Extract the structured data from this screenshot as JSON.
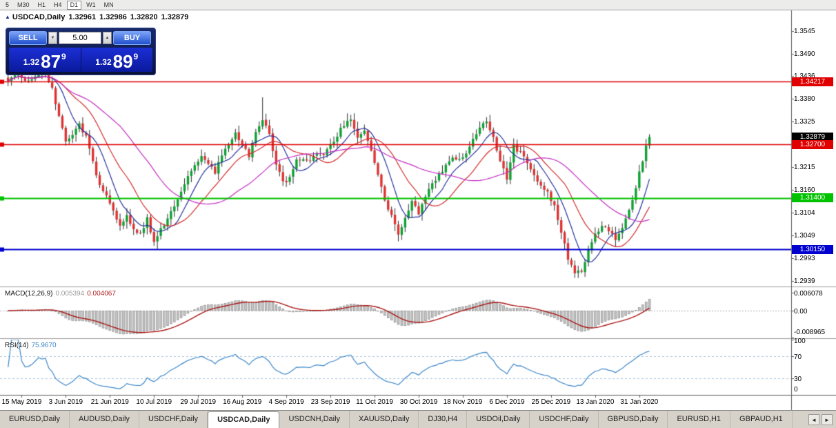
{
  "toolbar": {
    "timeframes": [
      "5",
      "M30",
      "H1",
      "H4",
      "D1",
      "W1",
      "MN"
    ],
    "active": "D1"
  },
  "chart_header": {
    "icon": "▲",
    "symbol": "USDCAD,Daily",
    "open": "1.32961",
    "high": "1.32986",
    "low": "1.32820",
    "close": "1.32879"
  },
  "trade_panel": {
    "sell_label": "SELL",
    "buy_label": "BUY",
    "lot_value": "5.00",
    "spin_up": "▲",
    "spin_down": "▼",
    "sell_price": {
      "prefix": "1.32",
      "big": "87",
      "sup": "9"
    },
    "buy_price": {
      "prefix": "1.32",
      "big": "89",
      "sup": "9"
    }
  },
  "price_axis": {
    "ticks": [
      {
        "text": "1.3545",
        "p": 1.3545
      },
      {
        "text": "1.3490",
        "p": 1.349
      },
      {
        "text": "1.3436",
        "p": 1.3436
      },
      {
        "text": "1.3380",
        "p": 1.338
      },
      {
        "text": "1.3325",
        "p": 1.3325
      },
      {
        "text": "1.3270",
        "p": 1.327
      },
      {
        "text": "1.3215",
        "p": 1.3215
      },
      {
        "text": "1.3160",
        "p": 1.316
      },
      {
        "text": "1.3104",
        "p": 1.3104
      },
      {
        "text": "1.3049",
        "p": 1.3049
      },
      {
        "text": "1.2993",
        "p": 1.2993
      },
      {
        "text": "1.2939",
        "p": 1.2939
      }
    ]
  },
  "hlines": [
    {
      "label": "1.34217",
      "price": 1.34217,
      "color": "#e00000",
      "line": true,
      "lw": 1.4
    },
    {
      "label": "1.32879",
      "price": 1.32879,
      "color": "#000000",
      "line": false,
      "lw": 0
    },
    {
      "label": "1.32700",
      "price": 1.327,
      "color": "#e00000",
      "line": true,
      "lw": 1.4
    },
    {
      "label": "1.31400",
      "price": 1.314,
      "color": "#00c300",
      "line": true,
      "lw": 1.8
    },
    {
      "label": "1.30150",
      "price": 1.3015,
      "color": "#0000cf",
      "line": true,
      "lw": 1.8
    }
  ],
  "macd_panel": {
    "name": "MACD(12,26,9)",
    "main_value": "0.005394",
    "signal_value": "0.004067",
    "fast": 12,
    "slow": 26,
    "signal": 9,
    "axis": [
      {
        "text": "0.006078",
        "v": 0.006078
      },
      {
        "text": "0.00",
        "v": 0
      },
      {
        "text": "-0.008965",
        "v": -0.008965
      }
    ],
    "ylim": [
      -0.0092,
      0.0076
    ],
    "bar_color": "#c4c4c4",
    "bar_edge": "#8e8e8e",
    "signal_color": "#aa1515"
  },
  "rsi_panel": {
    "name": "RSI(14)",
    "value": "75.9670",
    "period": 14,
    "axis": [
      {
        "text": "100",
        "v": 100
      },
      {
        "text": "70",
        "v": 70
      },
      {
        "text": "30",
        "v": 30
      },
      {
        "text": "0",
        "v": 0
      }
    ],
    "levels": [
      70,
      30
    ],
    "line_color": "#3a86c8",
    "level_color": "#a9c4de"
  },
  "date_axis": {
    "first_index": 4,
    "step": 13,
    "labels": [
      "15 May 2019",
      "3 Jun 2019",
      "21 Jun 2019",
      "10 Jul 2019",
      "29 Jul 2019",
      "16 Aug 2019",
      "4 Sep 2019",
      "23 Sep 2019",
      "11 Oct 2019",
      "30 Oct 2019",
      "18 Nov 2019",
      "6 Dec 2019",
      "25 Dec 2019",
      "13 Jan 2020",
      "31 Jan 2020"
    ]
  },
  "tabs": {
    "items": [
      "EURUSD,Daily",
      "AUDUSD,Daily",
      "USDCHF,Daily",
      "USDCAD,Daily",
      "USDCNH,Daily",
      "XAUUSD,Daily",
      "DJ30,H4",
      "USDOil,Daily",
      "USDCHF,Daily",
      "GBPUSD,Daily",
      "EURUSD,H1",
      "GBPAUD,H1"
    ],
    "active_index": 3,
    "prev_icon": "◄",
    "next_icon": "►"
  },
  "chart_data": {
    "type": "candlestick",
    "symbol": "USDCAD",
    "timeframe": "Daily",
    "ylim": [
      1.2925,
      1.3595
    ],
    "n_candles": 190,
    "last_close": 1.32879,
    "up_color": "#0ea132",
    "down_color": "#e03232",
    "wick_color": "#2d2d2d",
    "ma": [
      {
        "period": 8,
        "color": "#23309b"
      },
      {
        "period": 17,
        "color": "#d22c2c"
      },
      {
        "period": 34,
        "color": "#c32bc3"
      }
    ],
    "price_path": [
      [
        0,
        1.3428
      ],
      [
        3,
        1.3438
      ],
      [
        6,
        1.3422
      ],
      [
        9,
        1.3442
      ],
      [
        11,
        1.3446
      ],
      [
        13,
        1.3402
      ],
      [
        15,
        1.3336
      ],
      [
        17,
        1.3282
      ],
      [
        19,
        1.3294
      ],
      [
        21,
        1.3318
      ],
      [
        23,
        1.329
      ],
      [
        25,
        1.3226
      ],
      [
        27,
        1.3168
      ],
      [
        29,
        1.3142
      ],
      [
        31,
        1.3112
      ],
      [
        33,
        1.3072
      ],
      [
        35,
        1.3098
      ],
      [
        37,
        1.3062
      ],
      [
        39,
        1.3052
      ],
      [
        41,
        1.3088
      ],
      [
        43,
        1.3032
      ],
      [
        45,
        1.3062
      ],
      [
        47,
        1.3092
      ],
      [
        49,
        1.3124
      ],
      [
        51,
        1.3156
      ],
      [
        53,
        1.3194
      ],
      [
        55,
        1.3222
      ],
      [
        57,
        1.3242
      ],
      [
        59,
        1.3222
      ],
      [
        61,
        1.3202
      ],
      [
        63,
        1.3242
      ],
      [
        65,
        1.3272
      ],
      [
        67,
        1.3296
      ],
      [
        69,
        1.3268
      ],
      [
        71,
        1.3244
      ],
      [
        73,
        1.3298
      ],
      [
        75,
        1.333
      ],
      [
        77,
        1.329
      ],
      [
        79,
        1.3224
      ],
      [
        81,
        1.3178
      ],
      [
        83,
        1.3186
      ],
      [
        85,
        1.3228
      ],
      [
        87,
        1.3238
      ],
      [
        89,
        1.3228
      ],
      [
        91,
        1.3248
      ],
      [
        93,
        1.3242
      ],
      [
        95,
        1.3266
      ],
      [
        97,
        1.3292
      ],
      [
        99,
        1.3318
      ],
      [
        101,
        1.333
      ],
      [
        103,
        1.3288
      ],
      [
        105,
        1.3306
      ],
      [
        107,
        1.325
      ],
      [
        109,
        1.3196
      ],
      [
        111,
        1.3138
      ],
      [
        113,
        1.3094
      ],
      [
        115,
        1.3054
      ],
      [
        117,
        1.3092
      ],
      [
        119,
        1.3132
      ],
      [
        121,
        1.3102
      ],
      [
        123,
        1.3148
      ],
      [
        125,
        1.3172
      ],
      [
        127,
        1.3194
      ],
      [
        129,
        1.3222
      ],
      [
        131,
        1.3242
      ],
      [
        133,
        1.323
      ],
      [
        135,
        1.3252
      ],
      [
        137,
        1.3282
      ],
      [
        139,
        1.3312
      ],
      [
        141,
        1.333
      ],
      [
        143,
        1.3288
      ],
      [
        145,
        1.3232
      ],
      [
        147,
        1.3186
      ],
      [
        149,
        1.3264
      ],
      [
        151,
        1.325
      ],
      [
        153,
        1.3222
      ],
      [
        155,
        1.3192
      ],
      [
        157,
        1.3172
      ],
      [
        159,
        1.3152
      ],
      [
        161,
        1.3122
      ],
      [
        163,
        1.3058
      ],
      [
        165,
        1.2992
      ],
      [
        167,
        1.2962
      ],
      [
        169,
        1.2956
      ],
      [
        171,
        1.3012
      ],
      [
        173,
        1.3048
      ],
      [
        175,
        1.3068
      ],
      [
        177,
        1.3062
      ],
      [
        179,
        1.3042
      ],
      [
        181,
        1.3068
      ],
      [
        183,
        1.3108
      ],
      [
        185,
        1.3168
      ],
      [
        187,
        1.3232
      ],
      [
        188,
        1.3266
      ],
      [
        189,
        1.32879
      ]
    ],
    "high_spikes": [
      [
        11,
        1.3452
      ],
      [
        75,
        1.3384
      ],
      [
        100,
        1.3345
      ],
      [
        141,
        1.3336
      ]
    ],
    "low_spikes": [
      [
        44,
        1.3016
      ],
      [
        115,
        1.3044
      ],
      [
        167,
        1.2948
      ]
    ]
  }
}
